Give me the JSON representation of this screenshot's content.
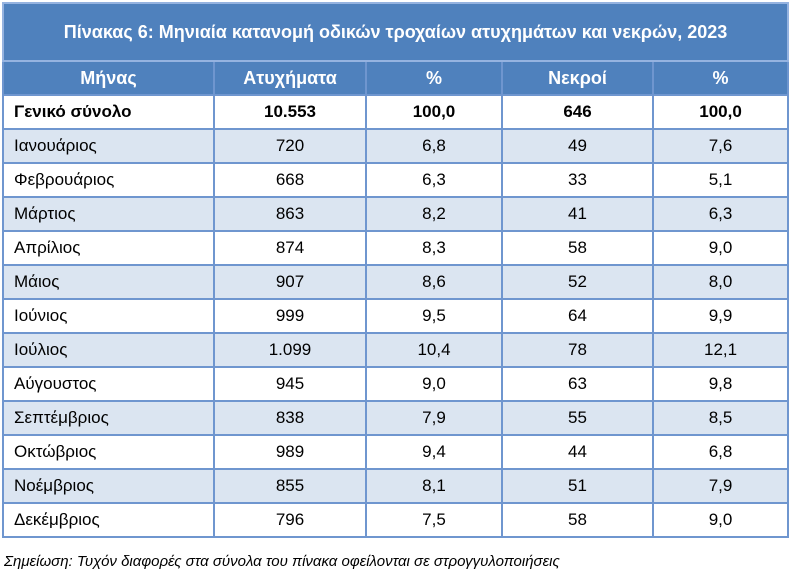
{
  "table": {
    "title": "Πίνακας 6: Μηνιαία κατανομή οδικών τροχαίων ατυχημάτων και νεκρών, 2023",
    "headers": [
      "Μήνας",
      "Ατυχήματα",
      "%",
      "Νεκροί",
      "%"
    ],
    "total": {
      "label": "Γενικό σύνολο",
      "accidents": "10.553",
      "accidents_pct": "100,0",
      "deaths": "646",
      "deaths_pct": "100,0"
    },
    "rows": [
      {
        "month": "Ιανουάριος",
        "accidents": "720",
        "accidents_pct": "6,8",
        "deaths": "49",
        "deaths_pct": "7,6"
      },
      {
        "month": "Φεβρουάριος",
        "accidents": "668",
        "accidents_pct": "6,3",
        "deaths": "33",
        "deaths_pct": "5,1"
      },
      {
        "month": "Μάρτιος",
        "accidents": "863",
        "accidents_pct": "8,2",
        "deaths": "41",
        "deaths_pct": "6,3"
      },
      {
        "month": "Απρίλιος",
        "accidents": "874",
        "accidents_pct": "8,3",
        "deaths": "58",
        "deaths_pct": "9,0"
      },
      {
        "month": "Μάιος",
        "accidents": "907",
        "accidents_pct": "8,6",
        "deaths": "52",
        "deaths_pct": "8,0"
      },
      {
        "month": "Ιούνιος",
        "accidents": "999",
        "accidents_pct": "9,5",
        "deaths": "64",
        "deaths_pct": "9,9"
      },
      {
        "month": "Ιούλιος",
        "accidents": "1.099",
        "accidents_pct": "10,4",
        "deaths": "78",
        "deaths_pct": "12,1"
      },
      {
        "month": "Αύγουστος",
        "accidents": "945",
        "accidents_pct": "9,0",
        "deaths": "63",
        "deaths_pct": "9,8"
      },
      {
        "month": "Σεπτέμβριος",
        "accidents": "838",
        "accidents_pct": "7,9",
        "deaths": "55",
        "deaths_pct": "8,5"
      },
      {
        "month": "Οκτώβριος",
        "accidents": "989",
        "accidents_pct": "9,4",
        "deaths": "44",
        "deaths_pct": "6,8"
      },
      {
        "month": "Νοέμβριος",
        "accidents": "855",
        "accidents_pct": "8,1",
        "deaths": "51",
        "deaths_pct": "7,9"
      },
      {
        "month": "Δεκέμβριος",
        "accidents": "796",
        "accidents_pct": "7,5",
        "deaths": "58",
        "deaths_pct": "9,0"
      }
    ]
  },
  "note": "Σημείωση: Τυχόν διαφορές στα σύνολα του πίνακα οφείλονται σε στρογγυλοποιήσεις",
  "colors": {
    "header_bg": "#4f81bd",
    "alt_row_bg": "#dbe5f1",
    "border": "#6f96cf"
  }
}
